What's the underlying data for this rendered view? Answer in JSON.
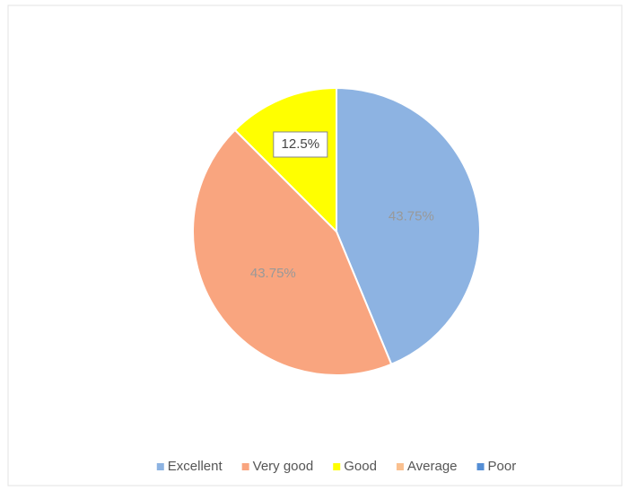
{
  "chart_data": {
    "type": "pie",
    "categories": [
      "Excellent",
      "Very good",
      "Good",
      "Average",
      "Poor"
    ],
    "values": [
      43.75,
      43.75,
      12.5,
      0,
      0
    ],
    "value_labels": [
      "43.75%",
      "43.75%",
      "12.5%",
      null,
      null
    ],
    "colors": [
      "#8db3e2",
      "#f9a57f",
      "#ffff00",
      "#fac08f",
      "#558ed5"
    ],
    "legend": "bottom"
  }
}
